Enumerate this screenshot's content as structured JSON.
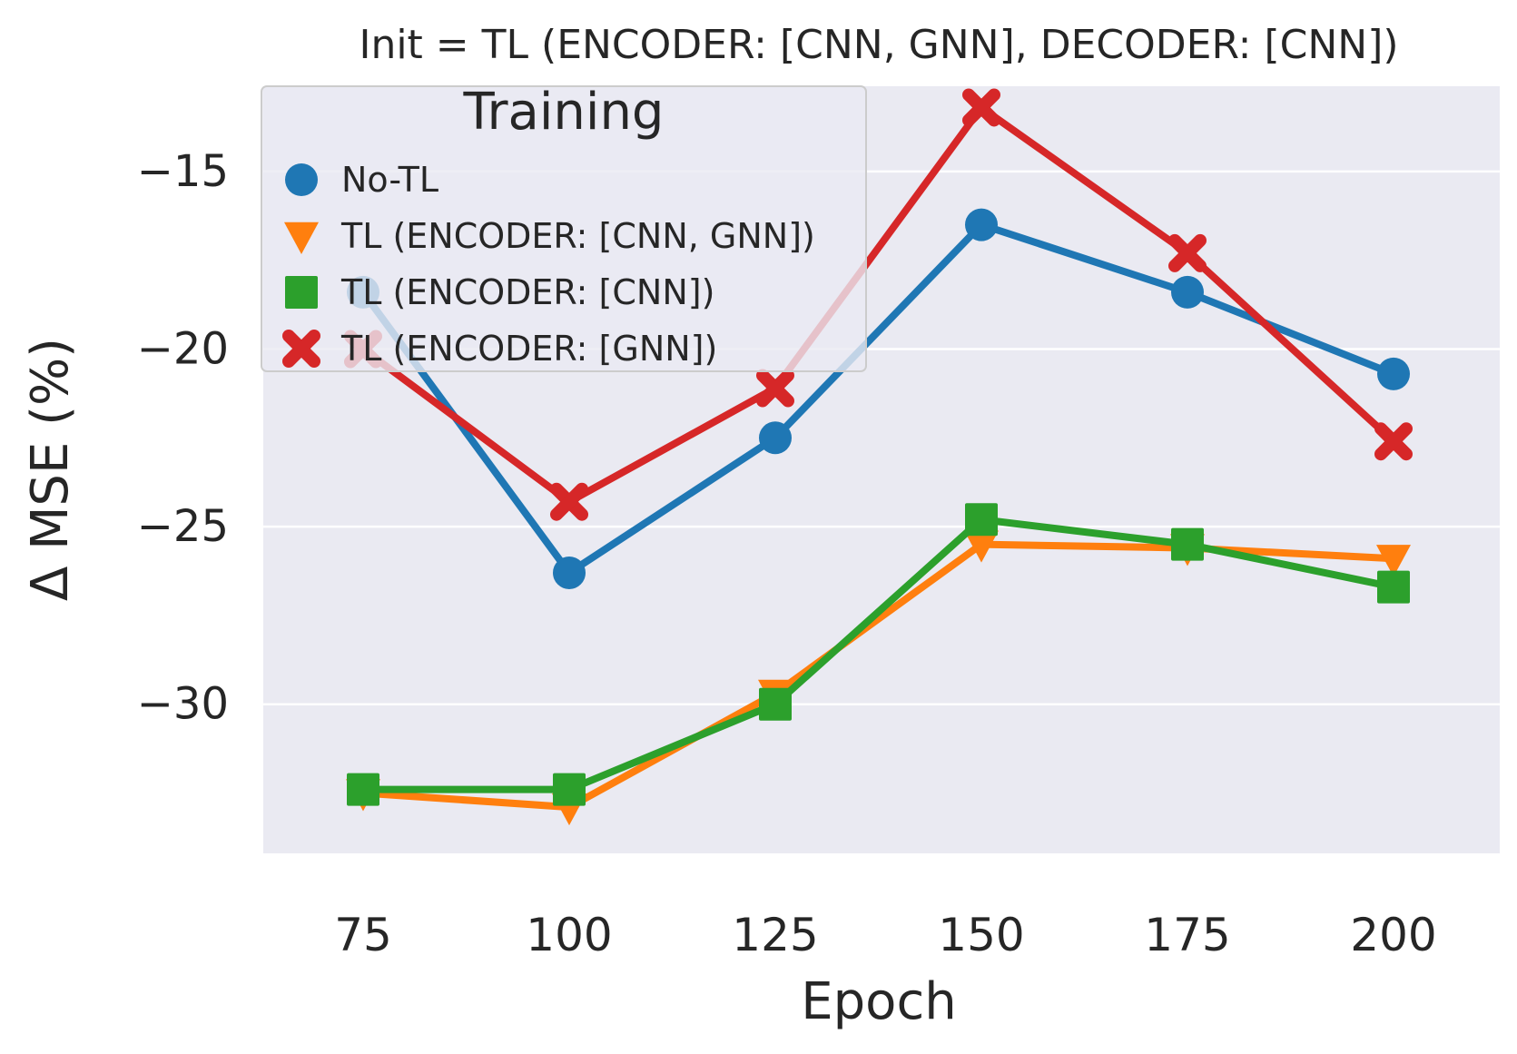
{
  "chart_data": {
    "type": "line",
    "title": "Init = TL (ENCODER: [CNN, GNN], DECODER: [CNN])",
    "xlabel": "Epoch",
    "ylabel": "Δ MSE (%)",
    "categories": [
      "75",
      "100",
      "125",
      "150",
      "175",
      "200"
    ],
    "yticks": [
      -30,
      -25,
      -20,
      -15
    ],
    "ylim": [
      -34.2,
      -12.6
    ],
    "grid": true,
    "background": "#eaeaf2",
    "legend": {
      "title": "Training",
      "placement": "top-left"
    },
    "series": [
      {
        "name": "No-TL",
        "color": "#1f77b4",
        "marker": "circle",
        "values": [
          -18.4,
          -26.3,
          -22.5,
          -16.5,
          -18.4,
          -20.7
        ]
      },
      {
        "name": "TL (ENCODER: [CNN, GNN])",
        "color": "#ff7f0e",
        "marker": "triangle-down",
        "values": [
          -32.5,
          -32.9,
          -29.7,
          -25.5,
          -25.6,
          -25.9
        ]
      },
      {
        "name": "TL (ENCODER: [CNN])",
        "color": "#2ca02c",
        "marker": "square",
        "values": [
          -32.4,
          -32.4,
          -30.0,
          -24.8,
          -25.5,
          -26.7
        ]
      },
      {
        "name": "TL (ENCODER: [GNN])",
        "color": "#d62728",
        "marker": "x",
        "values": [
          -20.0,
          -24.3,
          -21.1,
          -13.2,
          -17.3,
          -22.6
        ]
      }
    ]
  }
}
